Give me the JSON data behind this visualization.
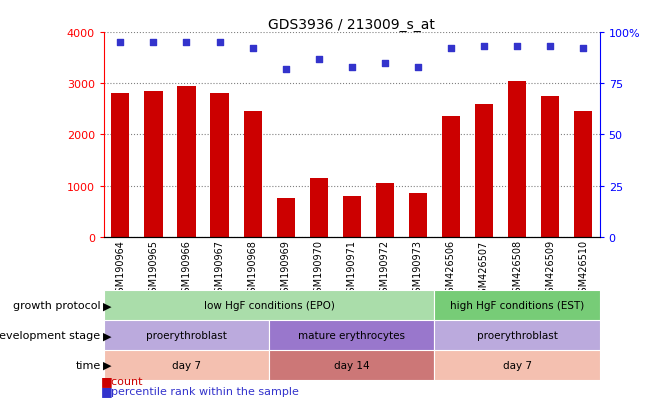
{
  "title": "GDS3936 / 213009_s_at",
  "samples": [
    "GSM190964",
    "GSM190965",
    "GSM190966",
    "GSM190967",
    "GSM190968",
    "GSM190969",
    "GSM190970",
    "GSM190971",
    "GSM190972",
    "GSM190973",
    "GSM426506",
    "GSM426507",
    "GSM426508",
    "GSM426509",
    "GSM426510"
  ],
  "counts": [
    2800,
    2850,
    2950,
    2800,
    2450,
    750,
    1150,
    800,
    1050,
    850,
    2350,
    2600,
    3050,
    2750,
    2450
  ],
  "percentiles": [
    95,
    95,
    95,
    95,
    92,
    82,
    87,
    83,
    85,
    83,
    92,
    93,
    93,
    93,
    92
  ],
  "bar_color": "#cc0000",
  "dot_color": "#3333cc",
  "ylim_left": [
    0,
    4000
  ],
  "ylim_right": [
    0,
    100
  ],
  "yticks_left": [
    0,
    1000,
    2000,
    3000,
    4000
  ],
  "yticks_right": [
    0,
    25,
    50,
    75,
    100
  ],
  "growth_protocol_groups": [
    {
      "label": "low HgF conditions (EPO)",
      "start": 0,
      "end": 10,
      "color": "#aaddaa"
    },
    {
      "label": "high HgF conditions (EST)",
      "start": 10,
      "end": 15,
      "color": "#77cc77"
    }
  ],
  "development_stage_groups": [
    {
      "label": "proerythroblast",
      "start": 0,
      "end": 5,
      "color": "#bbaadd"
    },
    {
      "label": "mature erythrocytes",
      "start": 5,
      "end": 10,
      "color": "#9977cc"
    },
    {
      "label": "proerythroblast",
      "start": 10,
      "end": 15,
      "color": "#bbaadd"
    }
  ],
  "time_groups": [
    {
      "label": "day 7",
      "start": 0,
      "end": 5,
      "color": "#f4c0b0"
    },
    {
      "label": "day 14",
      "start": 5,
      "end": 10,
      "color": "#cc7777"
    },
    {
      "label": "day 7",
      "start": 10,
      "end": 15,
      "color": "#f4c0b0"
    }
  ],
  "row_labels": [
    "growth protocol",
    "development stage",
    "time"
  ],
  "legend_count_color": "#cc0000",
  "legend_dot_color": "#3333cc",
  "xlabel_bg": "#dddddd"
}
